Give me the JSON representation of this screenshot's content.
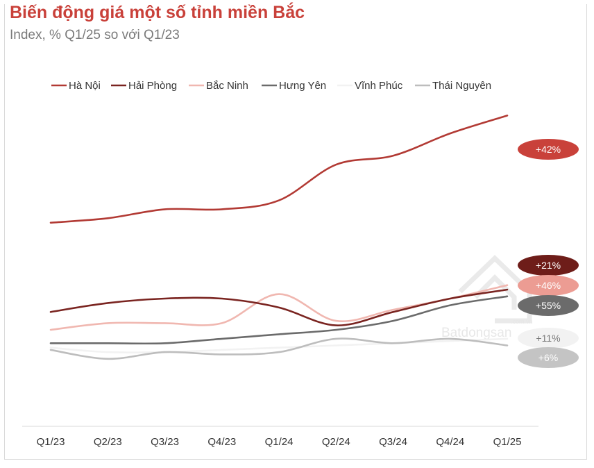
{
  "title": "Biến động giá một số tỉnh miền Bắc",
  "subtitle": "Index, % Q1/25 so với Q1/23",
  "watermark": {
    "brand": "Batdongsan",
    "suffix": ".com.vn"
  },
  "chart_data": {
    "type": "line",
    "title": "Biến động giá một số tỉnh miền Bắc",
    "subtitle": "Index, % Q1/25 so với Q1/23",
    "xlabel": "",
    "ylabel": "",
    "grid": false,
    "legend_position": "top",
    "ylim": [
      85,
      155
    ],
    "categories": [
      "Q1/23",
      "Q2/23",
      "Q3/23",
      "Q4/23",
      "Q1/24",
      "Q2/24",
      "Q3/24",
      "Q4/24",
      "Q1/25"
    ],
    "series": [
      {
        "name": "Hà Nội",
        "color": "#b23a34",
        "badge": "+42%",
        "badge_color": "#c9413a",
        "badge_text_color": "#ffffff",
        "values": [
          130,
          131,
          133,
          133,
          135,
          143,
          145,
          150,
          154
        ]
      },
      {
        "name": "Hải Phòng",
        "color": "#7a2420",
        "badge": "+21%",
        "badge_color": "#6e1d19",
        "badge_text_color": "#ffffff",
        "values": [
          110,
          112,
          113,
          113,
          111,
          107,
          110,
          113,
          115
        ]
      },
      {
        "name": "Bắc Ninh",
        "color": "#f0b7b0",
        "badge": "+46%",
        "badge_color": "#ec9c93",
        "badge_text_color": "#ffffff",
        "values": [
          106,
          107.5,
          107.5,
          107.5,
          114,
          108,
          110.5,
          113,
          116
        ]
      },
      {
        "name": "Hưng Yên",
        "color": "#6b6b6b",
        "badge": "+55%",
        "badge_color": "#6b6b6b",
        "badge_text_color": "#ffffff",
        "values": [
          103,
          103,
          103,
          104,
          105,
          106,
          108,
          111.5,
          113.5
        ]
      },
      {
        "name": "Vĩnh Phúc",
        "color": "#f2f2f2",
        "badge": "+11%",
        "badge_color": "#f2f2f2",
        "badge_text_color": "#7a7a7a",
        "values": [
          102,
          101,
          101,
          101.5,
          102,
          102.5,
          103,
          103.5,
          104
        ]
      },
      {
        "name": "Thái Nguyên",
        "color": "#bdbdbd",
        "badge": "+6%",
        "badge_color": "#c4c4c4",
        "badge_text_color": "#ffffff",
        "values": [
          101.5,
          99.5,
          101,
          100.5,
          101,
          104,
          103,
          104,
          102.5
        ]
      }
    ]
  }
}
